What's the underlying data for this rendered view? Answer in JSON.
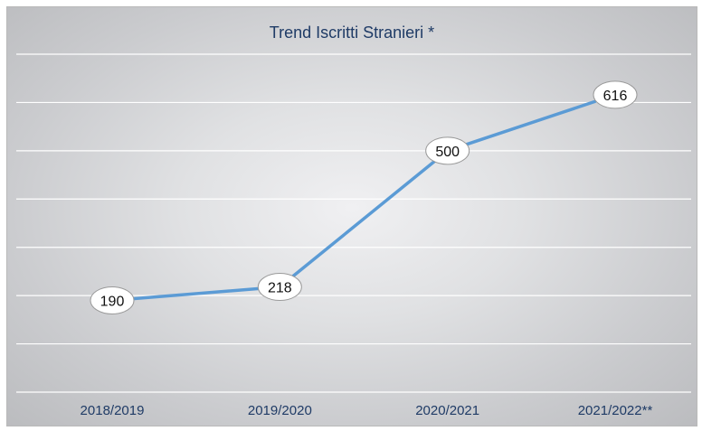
{
  "chart_data": {
    "type": "line",
    "title": "Trend Iscritti Stranieri *",
    "xlabel": "",
    "ylabel": "",
    "categories": [
      "2018/2019",
      "2019/2020",
      "2020/2021",
      "2021/2022**"
    ],
    "series": [
      {
        "values": [
          190,
          218,
          500,
          616
        ],
        "data_labels": [
          "190",
          "218",
          "500",
          "616"
        ]
      }
    ],
    "ylim": [
      0,
      700
    ],
    "grid": true,
    "legend": "none",
    "colors": {
      "line": "#5b9bd5",
      "title": "#1f3b66",
      "gridline": "#ffffff",
      "label_bubble": "#ffffff"
    }
  }
}
